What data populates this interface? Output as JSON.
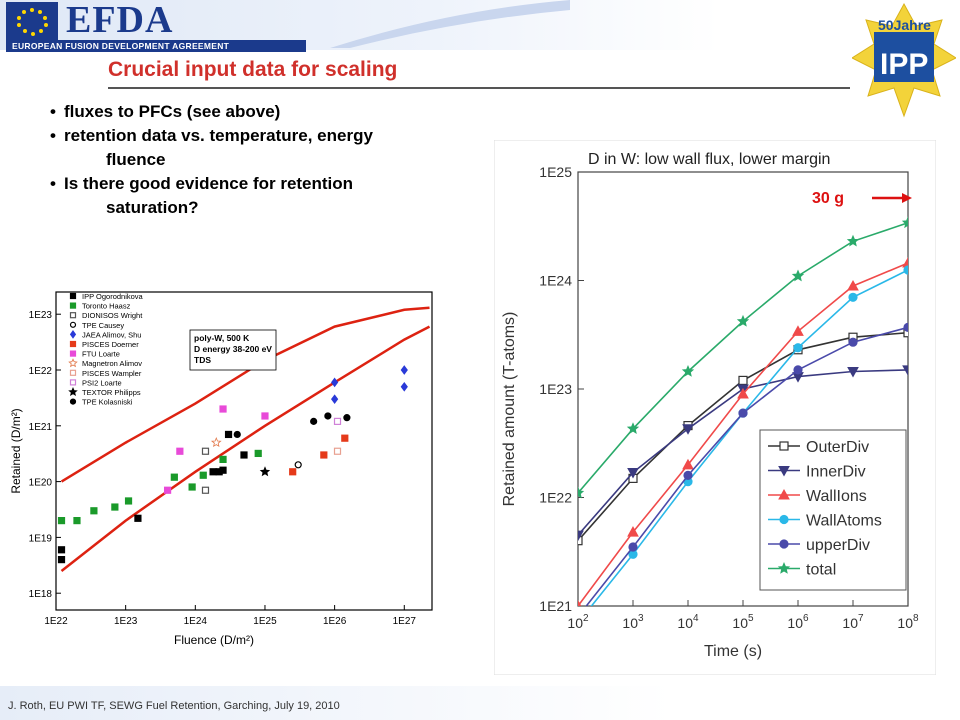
{
  "header": {
    "brand": "EFDA",
    "brand_sub": "EUROPEAN FUSION DEVELOPMENT AGREEMENT",
    "ipp_top": "50Jahre",
    "ipp_main": "IPP"
  },
  "slide": {
    "title": "Crucial input data for scaling",
    "bullets": [
      {
        "text": "fluxes to PFCs (see above)"
      },
      {
        "text": "retention data vs. temperature, energy",
        "cont": "fluence"
      },
      {
        "text": "Is there good evidence for retention",
        "cont": "saturation?"
      }
    ],
    "footer": "J. Roth, EU PWI TF, SEWG Fuel Retention, Garching, July 19, 2010"
  },
  "chart_data": [
    {
      "type": "scatter",
      "xlabel": "Fluence (D/m²)",
      "ylabel": "Retained (D/m²)",
      "x_scale": "log",
      "y_scale": "log",
      "xlim": [
        1e+22,
        2.5e+27
      ],
      "ylim": [
        5e+17,
        2.5e+23
      ],
      "x_ticks": [
        "1E22",
        "1E23",
        "1E24",
        "1E25",
        "1E26",
        "1E27"
      ],
      "y_ticks": [
        "1E23",
        "1E22",
        "1E21",
        "1E20",
        "1E19",
        "1E18"
      ],
      "annotation": [
        "poly-W, 500 K",
        "D energy 38-200 eV",
        "TDS"
      ],
      "series": [
        {
          "name": "IPP Ogorodnikova",
          "marker": "square",
          "color": "#000000",
          "filled": true,
          "points": [
            [
              1.2e+22,
              6e+18
            ],
            [
              1.2e+22,
              4e+18
            ],
            [
              1.5e+23,
              2.2e+19
            ]
          ]
        },
        {
          "name": "Toronto Haasz",
          "marker": "square",
          "color": "#1a9a2a",
          "filled": true,
          "points": [
            [
              1.2e+22,
              2e+19
            ],
            [
              2e+22,
              2e+19
            ],
            [
              3.5e+22,
              3e+19
            ],
            [
              7e+22,
              3.5e+19
            ],
            [
              1.1e+23,
              4.5e+19
            ],
            [
              5e+23,
              1.2e+20
            ],
            [
              9e+23,
              8e+19
            ],
            [
              1.3e+24,
              1.3e+20
            ],
            [
              2.5e+24,
              2.5e+20
            ],
            [
              8e+24,
              3.2e+20
            ]
          ]
        },
        {
          "name": "DIONISOS Wright",
          "marker": "square",
          "color": "#555555",
          "filled": false,
          "points": [
            [
              1.4e+24,
              3.5e+20
            ],
            [
              1.4e+24,
              7e+19
            ]
          ]
        },
        {
          "name": "TPE Causey",
          "marker": "circle",
          "color": "#000000",
          "filled": false,
          "points": [
            [
              3e+25,
              2e+20
            ]
          ]
        },
        {
          "name": "JAEA Alimov, Shu",
          "marker": "diamond",
          "color": "#2a3ad8",
          "filled": true,
          "points": [
            [
              1e+26,
              6e+21
            ],
            [
              1e+26,
              3e+21
            ],
            [
              1e+27,
              1e+22
            ],
            [
              1e+27,
              5e+21
            ]
          ]
        },
        {
          "name": "PISCES Doerner",
          "marker": "square",
          "color": "#e53a1a",
          "filled": true,
          "points": [
            [
              2.5e+25,
              1.5e+20
            ],
            [
              7e+25,
              3e+20
            ],
            [
              1.4e+26,
              6e+20
            ]
          ]
        },
        {
          "name": "FTU Loarte",
          "marker": "square",
          "color": "#e84ad8",
          "filled": true,
          "points": [
            [
              4e+23,
              7e+19
            ],
            [
              6e+23,
              3.5e+20
            ],
            [
              2.5e+24,
              2e+21
            ],
            [
              1e+25,
              1.5e+21
            ]
          ]
        },
        {
          "name": "Magnetron Alimov",
          "marker": "star",
          "color": "#e2784a",
          "filled": false,
          "points": [
            [
              2e+24,
              5e+20
            ]
          ]
        },
        {
          "name": "PISCES Wampler",
          "marker": "square",
          "color": "#e8a090",
          "filled": false,
          "points": [
            [
              1.1e+26,
              3.5e+20
            ]
          ]
        },
        {
          "name": "PSI2 Loarte",
          "marker": "square",
          "color": "#d080d8",
          "filled": false,
          "points": [
            [
              1.1e+26,
              1.2e+21
            ]
          ]
        },
        {
          "name": "TEXTOR Philipps",
          "marker": "star",
          "color": "#000000",
          "filled": true,
          "points": [
            [
              1e+25,
              1.5e+20
            ]
          ]
        },
        {
          "name": "TPE Kolasniski",
          "marker": "circle",
          "color": "#000000",
          "filled": true,
          "points": [
            [
              4e+24,
              7e+20
            ],
            [
              5e+25,
              1.2e+21
            ],
            [
              8e+25,
              1.5e+21
            ],
            [
              1.5e+26,
              1.4e+21
            ]
          ]
        },
        {
          "name": "",
          "marker": "square",
          "color": "#000000",
          "filled": true,
          "points": [
            [
              1.8e+24,
              1.5e+20
            ],
            [
              2.5e+24,
              1.6e+20
            ],
            [
              3e+24,
              7e+20
            ],
            [
              2.2e+24,
              1.5e+20
            ],
            [
              5e+24,
              3e+20
            ]
          ]
        }
      ],
      "curves": [
        {
          "color": "#dd2211",
          "points": [
            [
              1.2e+22,
              1e+20
            ],
            [
              1e+23,
              5e+20
            ],
            [
              1e+24,
              2.5e+21
            ],
            [
              1e+25,
              1.5e+22
            ],
            [
              1e+26,
              6e+22
            ],
            [
              1e+27,
              1.2e+23
            ],
            [
              2.3e+27,
              1.3e+23
            ]
          ]
        },
        {
          "color": "#dd2211",
          "points": [
            [
              1.2e+22,
              2.5e+18
            ],
            [
              1e+23,
              2e+19
            ],
            [
              1e+24,
              1.5e+20
            ],
            [
              1e+25,
              1e+21
            ],
            [
              1e+26,
              6e+21
            ],
            [
              1e+27,
              3.5e+22
            ],
            [
              2.3e+27,
              6e+22
            ]
          ]
        }
      ]
    },
    {
      "type": "line",
      "title": "D in W: low wall flux, lower margin",
      "xlabel": "Time (s)",
      "ylabel": "Retained amount (T-atoms)",
      "x_scale": "log",
      "y_scale": "log",
      "xlim": [
        100,
        100000000.0
      ],
      "ylim": [
        1e+21,
        1e+25
      ],
      "x_ticks": [
        "10^2",
        "10^3",
        "10^4",
        "10^5",
        "10^6",
        "10^7",
        "10^8"
      ],
      "y_ticks": [
        "1E25",
        "1E24",
        "1E23",
        "1E22",
        "1E21"
      ],
      "annotation": "30 g",
      "x": [
        100,
        1000,
        10000,
        100000,
        1000000,
        10000000,
        100000000
      ],
      "series": [
        {
          "name": "OuterDiv",
          "marker": "square-open",
          "color": "#333333",
          "values": [
            4e+21,
            1.5e+22,
            4.6e+22,
            1.2e+23,
            2.3e+23,
            3e+23,
            3.3e+23
          ]
        },
        {
          "name": "InnerDiv",
          "marker": "triangle-down",
          "color": "#3a3a80",
          "values": [
            4.5e+21,
            1.7e+22,
            4.3e+22,
            1e+23,
            1.3e+23,
            1.45e+23,
            1.5e+23
          ]
        },
        {
          "name": "WallIons",
          "marker": "triangle-up",
          "color": "#f04a4a",
          "values": [
            1e+21,
            4.8e+21,
            2e+22,
            9e+22,
            3.4e+23,
            8.9e+23,
            1.45e+24
          ]
        },
        {
          "name": "WallAtoms",
          "marker": "circle",
          "color": "#2ab8e8",
          "values": [
            7e+20,
            3e+21,
            1.4e+22,
            6e+22,
            2.4e+23,
            7e+23,
            1.25e+24
          ]
        },
        {
          "name": "upperDiv",
          "marker": "circle",
          "color": "#4a4aaa",
          "values": [
            8e+20,
            3.5e+21,
            1.6e+22,
            6e+22,
            1.5e+23,
            2.7e+23,
            3.7e+23
          ]
        },
        {
          "name": "total",
          "marker": "star",
          "color": "#2aaa6a",
          "values": [
            1.1e+22,
            4.3e+22,
            1.45e+23,
            4.2e+23,
            1.1e+24,
            2.3e+24,
            3.4e+24
          ]
        }
      ]
    }
  ]
}
